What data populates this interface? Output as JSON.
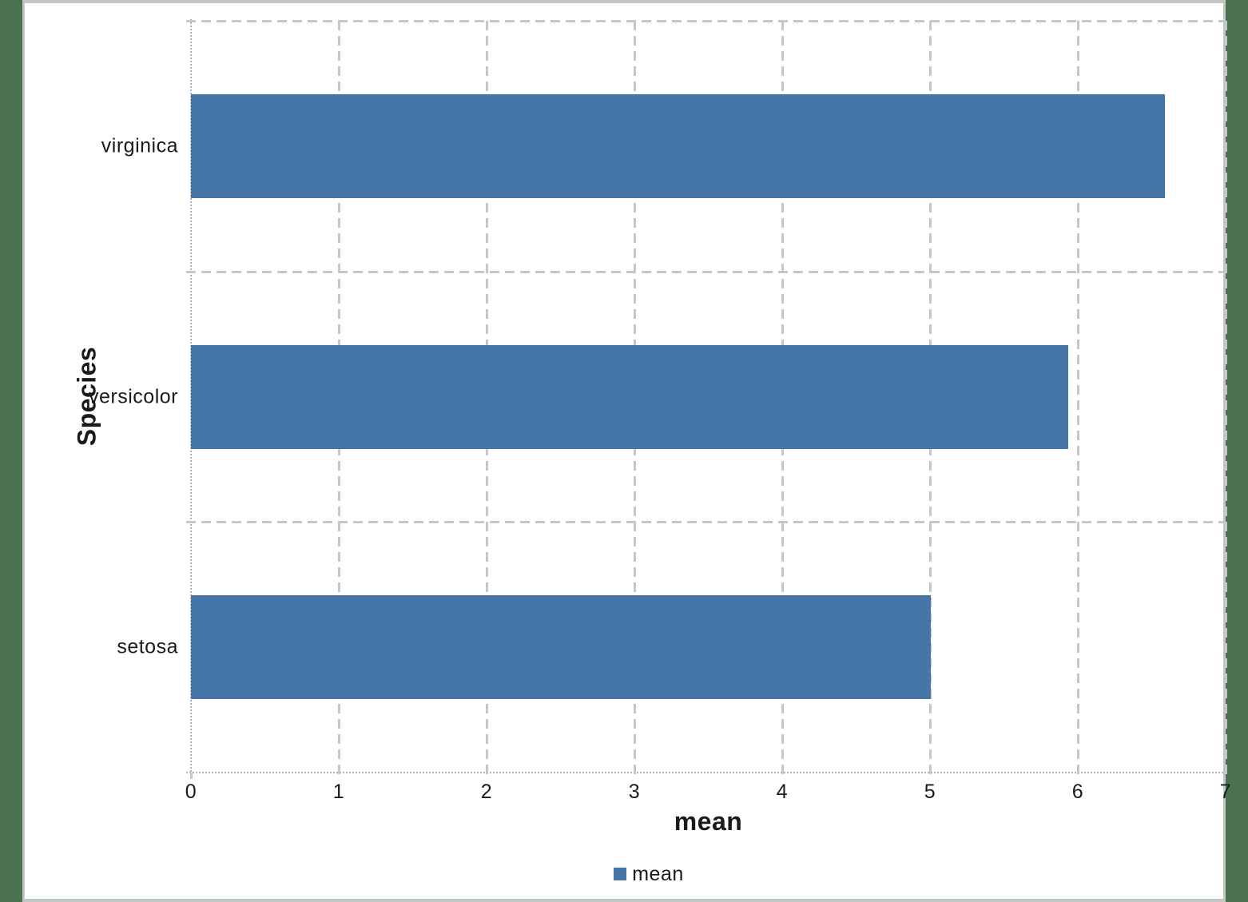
{
  "chart_data": {
    "type": "bar",
    "orientation": "horizontal",
    "xlabel": "mean",
    "ylabel": "Species",
    "categories": [
      "setosa",
      "versicolor",
      "virginica"
    ],
    "series": [
      {
        "name": "mean",
        "values": [
          5.006,
          5.936,
          6.588
        ]
      }
    ],
    "xaxis": {
      "min": 0,
      "max": 7,
      "ticks": [
        0,
        1,
        2,
        3,
        4,
        5,
        6,
        7
      ]
    },
    "grid": "dashed",
    "legend": {
      "position": "bottom",
      "entries": [
        "mean"
      ]
    },
    "bar_color": "#4576a7"
  },
  "colors": {
    "page_background": "#4a7150",
    "chart_background": "#ffffff",
    "panel_border": "#c3c7c3",
    "gridline": "#c7c7c7",
    "axis_line": "#b0b0b0",
    "text": "#1a1a1a"
  }
}
